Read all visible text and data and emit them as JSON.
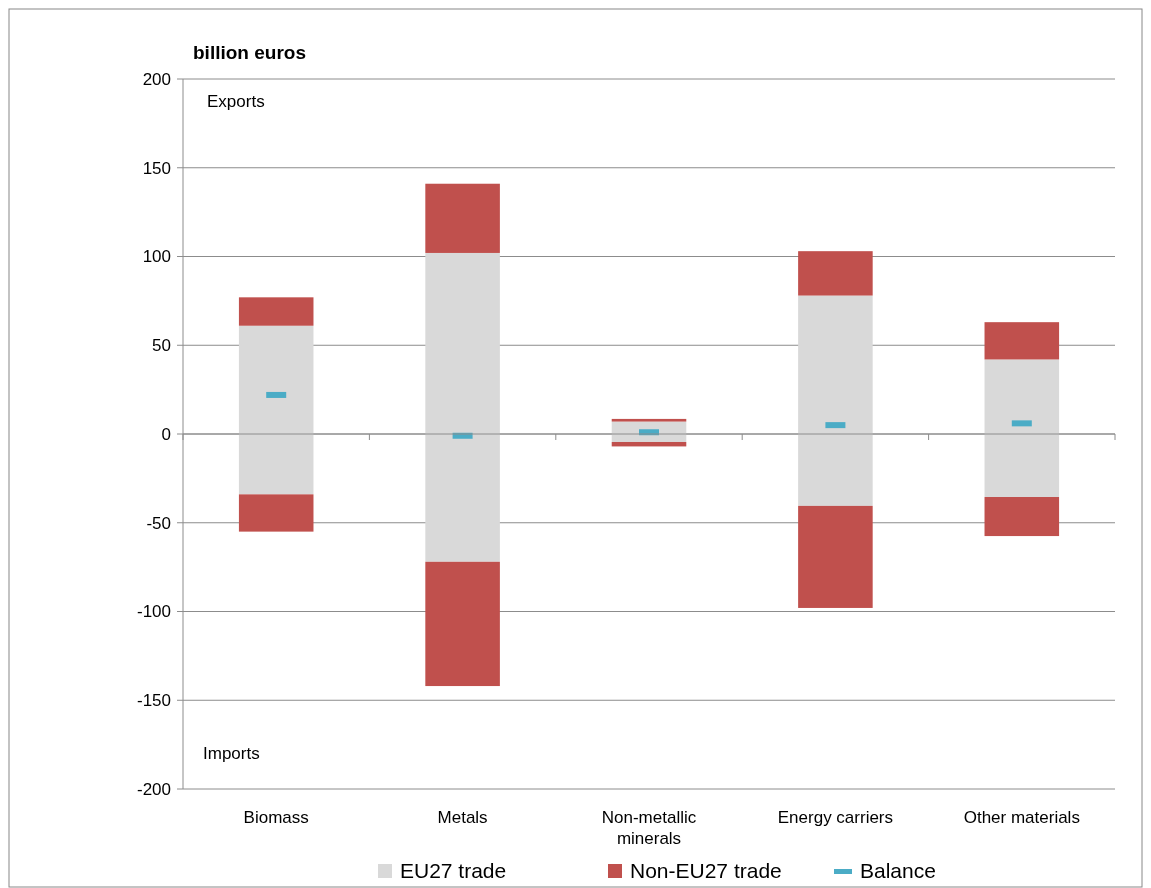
{
  "chart_data": {
    "type": "bar",
    "stacked": true,
    "ylabel": "billion euros",
    "categories": [
      "Biomass",
      "Metals",
      "Non-metallic minerals",
      "Energy carriers",
      "Other materials"
    ],
    "series": [
      {
        "name": "EU27 trade",
        "color": "#d9d9d9",
        "values": [
          61,
          102,
          7,
          78,
          42
        ]
      },
      {
        "name": "Non-EU27 trade",
        "color": "#c0504d",
        "values": [
          16,
          39,
          1.5,
          25,
          21
        ]
      },
      {
        "color": "#d9d9d9",
        "values": [
          -34,
          -72,
          -4.5,
          -40.5,
          -35.5
        ]
      },
      {
        "color": "#c0504d",
        "values": [
          -21,
          -70,
          -2.5,
          -57.5,
          -22
        ]
      },
      {
        "name": "Balance",
        "type": "scatter",
        "color": "#4bacc6",
        "values": [
          22,
          -1,
          1,
          5,
          6
        ]
      }
    ],
    "ylim": [
      -200,
      200
    ],
    "yticks": [
      -200,
      -150,
      -100,
      -50,
      0,
      50,
      100,
      150,
      200
    ],
    "grid": "y",
    "legend": "bottom",
    "annotations": [
      "Exports",
      "Imports"
    ]
  }
}
